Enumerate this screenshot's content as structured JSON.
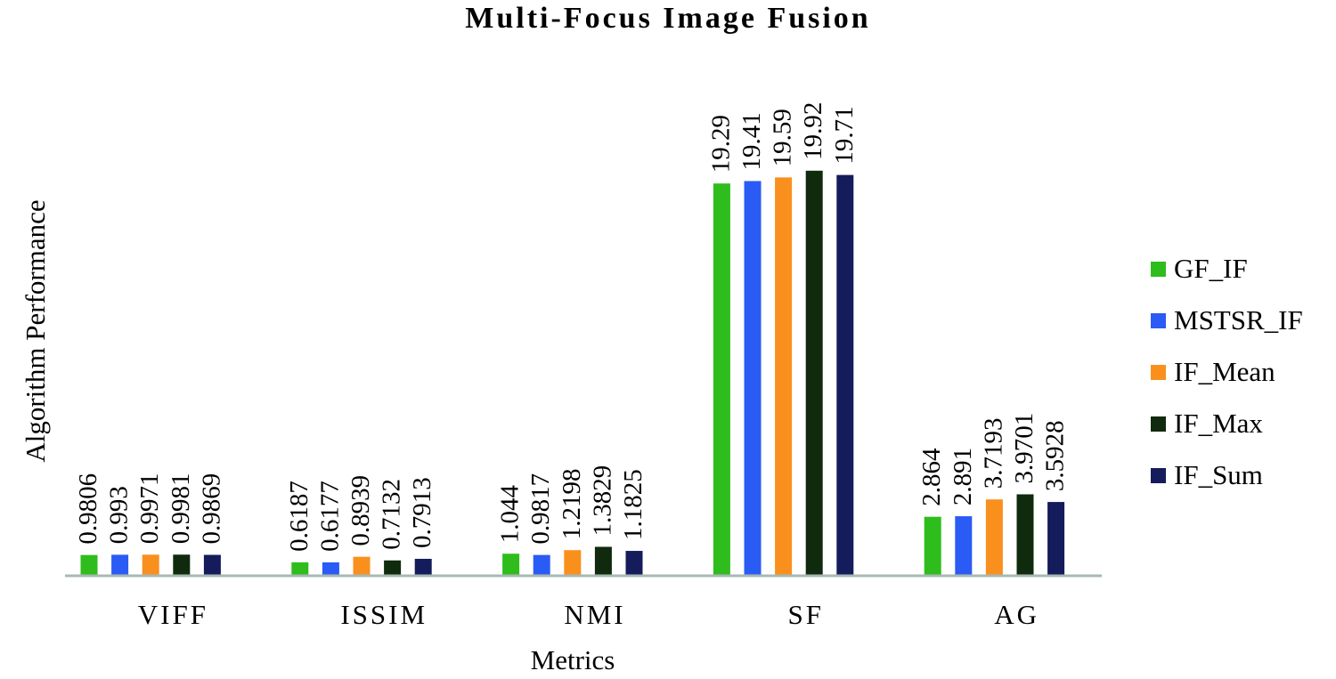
{
  "chart_data": {
    "type": "bar",
    "title": "Multi-Focus Image Fusion",
    "xlabel": "Metrics",
    "ylabel": "Algorithm Performance",
    "categories": [
      "VIFF",
      "ISSIM",
      "NMI",
      "SF",
      "AG"
    ],
    "series": [
      {
        "name": "GF_IF",
        "color": "#2ebd1d",
        "values": [
          0.9806,
          0.6187,
          1.044,
          19.29,
          2.864
        ],
        "labels": [
          "0.9806",
          "0.6187",
          "1.044",
          "19.29",
          "2.864"
        ]
      },
      {
        "name": "MSTSR_IF",
        "color": "#2a5bf5",
        "values": [
          0.993,
          0.6177,
          0.9817,
          19.41,
          2.891
        ],
        "labels": [
          "0.993",
          "0.6177",
          "0.9817",
          "19.41",
          "2.891"
        ]
      },
      {
        "name": "IF_Mean",
        "color": "#f9901e",
        "values": [
          0.9971,
          0.8939,
          1.2198,
          19.59,
          3.7193
        ],
        "labels": [
          "0.9971",
          "0.8939",
          "1.2198",
          "19.59",
          "3.7193"
        ]
      },
      {
        "name": "IF_Max",
        "color": "#102a0e",
        "values": [
          0.9981,
          0.7132,
          1.3829,
          19.92,
          3.9701
        ],
        "labels": [
          "0.9981",
          "0.7132",
          "1.3829",
          "19.92",
          "3.9701"
        ]
      },
      {
        "name": "IF_Sum",
        "color": "#141c5c",
        "values": [
          0.9869,
          0.7913,
          1.1825,
          19.71,
          3.5928
        ],
        "labels": [
          "0.9869",
          "0.7913",
          "1.1825",
          "19.71",
          "3.5928"
        ]
      }
    ],
    "ylim": [
      0,
      20
    ],
    "grid": false,
    "legend": "right",
    "axis_color": "#a9b8b3"
  }
}
